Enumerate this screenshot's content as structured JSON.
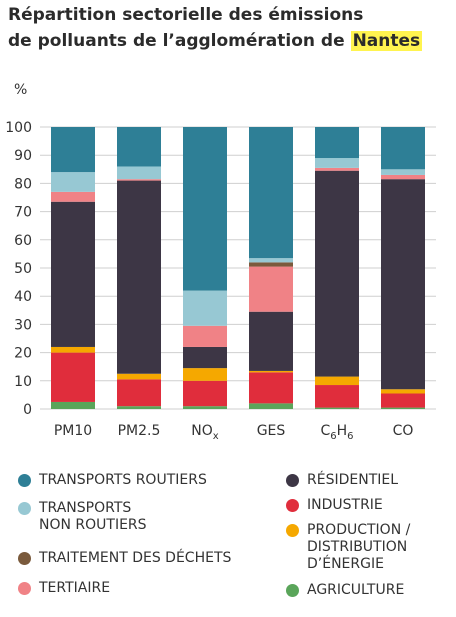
{
  "title_line1": "Répartition sectorielle des émissions",
  "title_line2_prefix": "de polluants de l’agglomération de ",
  "title_highlight": "Nantes",
  "chart_data": {
    "type": "bar",
    "stacked": true,
    "ylabel": "%",
    "ylim": [
      0,
      100
    ],
    "yticks": [
      0,
      10,
      20,
      30,
      40,
      50,
      60,
      70,
      80,
      90,
      100
    ],
    "grid": true,
    "legend_position": "bottom",
    "categories": [
      "PM10",
      "PM2.5",
      "NOx",
      "GES",
      "C6H6",
      "CO"
    ],
    "series": [
      {
        "name": "AGRICULTURE",
        "color": "#5aa55a",
        "values": [
          2.5,
          1,
          1,
          2,
          0.5,
          0.5
        ]
      },
      {
        "name": "INDUSTRIE",
        "color": "#e02d3c",
        "values": [
          17.5,
          9.5,
          9,
          11,
          8,
          5
        ]
      },
      {
        "name": "PRODUCTION / DISTRIBUTION D’ÉNERGIE",
        "color": "#f5a800",
        "values": [
          2,
          2,
          4.5,
          0.5,
          3,
          1.5
        ]
      },
      {
        "name": "RÉSIDENTIEL",
        "color": "#3d3645",
        "values": [
          51.5,
          68.5,
          7.5,
          21,
          73,
          74.5
        ]
      },
      {
        "name": "TERTIAIRE",
        "color": "#f08286",
        "values": [
          3.5,
          0.5,
          7.5,
          16,
          1,
          1.5
        ]
      },
      {
        "name": "TRAITEMENT DES DÉCHETS",
        "color": "#7a5a3c",
        "values": [
          0,
          0,
          0,
          1.5,
          0,
          0
        ]
      },
      {
        "name": "TRANSPORTS NON ROUTIERS",
        "color": "#97c8d3",
        "values": [
          7,
          4.5,
          12.5,
          1.5,
          3.5,
          2
        ]
      },
      {
        "name": "TRANSPORTS ROUTIERS",
        "color": "#2e7f96",
        "values": [
          16,
          14,
          58,
          46.5,
          11,
          15
        ]
      }
    ]
  },
  "legend": [
    {
      "key": "transports_routiers",
      "label": "TRANSPORTS ROUTIERS",
      "color": "#2e7f96"
    },
    {
      "key": "transports_non_routiers",
      "label": "TRANSPORTS\nNON ROUTIERS",
      "color": "#97c8d3"
    },
    {
      "key": "traitement_dechets",
      "label": "TRAITEMENT DES DÉCHETS",
      "color": "#7a5a3c"
    },
    {
      "key": "tertiaire",
      "label": "TERTIAIRE",
      "color": "#f08286"
    },
    {
      "key": "residentiel",
      "label": "RÉSIDENTIEL",
      "color": "#3d3645"
    },
    {
      "key": "industrie",
      "label": "INDUSTRIE",
      "color": "#e02d3c"
    },
    {
      "key": "production_distribution",
      "label": "PRODUCTION /\nDISTRIBUTION\nD’ÉNERGIE",
      "color": "#f5a800"
    },
    {
      "key": "agriculture",
      "label": "AGRICULTURE",
      "color": "#5aa55a"
    }
  ]
}
